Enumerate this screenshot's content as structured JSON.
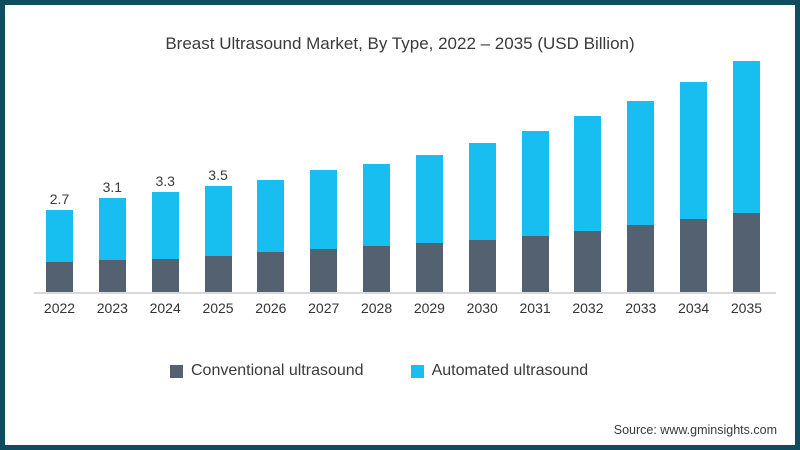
{
  "page": {
    "title": "Breast Ultrasound Market, By Type, 2022 – 2035 (USD Billion)",
    "source": "Source: www.gminsights.com"
  },
  "colors": {
    "conventional": "#546170",
    "automated": "#18BEF0",
    "border": "#0F4C60",
    "axis_line": "#D9D9D9",
    "text": "#3A3A3A"
  },
  "legend": {
    "conventional_label": "Conventional ultrasound",
    "automated_label": "Automated ultrasound"
  },
  "chart_data": {
    "type": "bar",
    "stacked": true,
    "title": "Breast Ultrasound Market, By Type, 2022 – 2035 (USD Billion)",
    "unit": "USD Billion",
    "categories": [
      "2022",
      "2023",
      "2024",
      "2025",
      "2026",
      "2027",
      "2028",
      "2029",
      "2030",
      "2031",
      "2032",
      "2033",
      "2034",
      "2035"
    ],
    "series": [
      {
        "name": "Conventional ultrasound",
        "color": "#546170",
        "values": [
          1.0,
          1.05,
          1.1,
          1.2,
          1.3,
          1.4,
          1.5,
          1.6,
          1.7,
          1.85,
          2.0,
          2.2,
          2.4,
          2.6
        ]
      },
      {
        "name": "Automated ultrasound",
        "color": "#18BEF0",
        "values": [
          1.7,
          2.05,
          2.2,
          2.3,
          2.4,
          2.6,
          2.7,
          2.9,
          3.2,
          3.45,
          3.8,
          4.1,
          4.5,
          5.0
        ]
      }
    ],
    "totals": [
      2.7,
      3.1,
      3.3,
      3.5,
      3.7,
      4.0,
      4.2,
      4.5,
      4.9,
      5.3,
      5.8,
      6.3,
      6.9,
      7.6
    ],
    "data_labels": [
      "2.7",
      "3.1",
      "3.3",
      "3.5",
      null,
      null,
      null,
      null,
      null,
      null,
      null,
      null,
      null,
      null
    ],
    "xlabel": "",
    "ylabel": "",
    "ylim": [
      0,
      8
    ],
    "grid": false,
    "legend_position": "bottom"
  }
}
